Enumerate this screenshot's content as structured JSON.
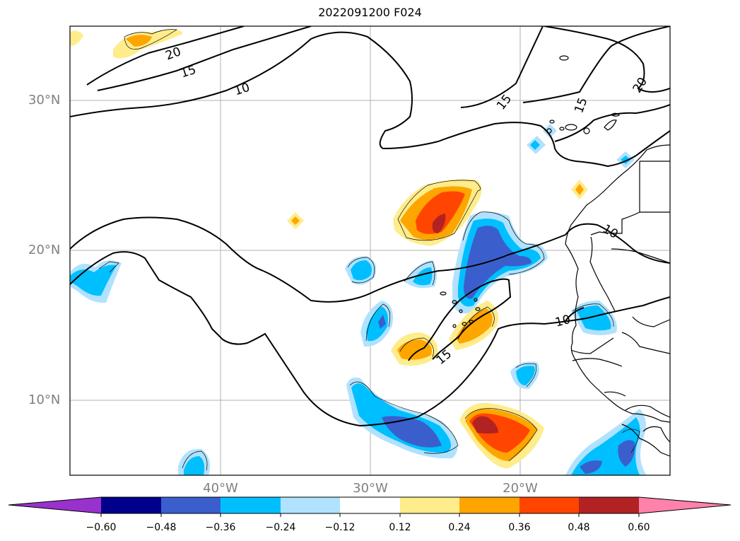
{
  "map": {
    "title": "2022091200 F024",
    "lat_labels": [
      "30°N",
      "20°N",
      "10°N"
    ],
    "lon_labels": [
      "40°W",
      "30°W",
      "20°W"
    ],
    "contour_labels": [
      "20",
      "15",
      "10",
      "15",
      "15",
      "20",
      "10",
      "10",
      "15"
    ]
  },
  "colorbar": {
    "ticks": [
      "−0.60",
      "−0.48",
      "−0.36",
      "−0.24",
      "−0.12",
      "0.12",
      "0.24",
      "0.36",
      "0.48",
      "0.60"
    ],
    "colors": [
      "#9932cc",
      "#00008b",
      "#3a5fcd",
      "#00bfff",
      "#b0e2ff",
      "#ffffff",
      "#ffec8b",
      "#ffa500",
      "#ff4500",
      "#b22222",
      "#ff82ab"
    ]
  }
}
